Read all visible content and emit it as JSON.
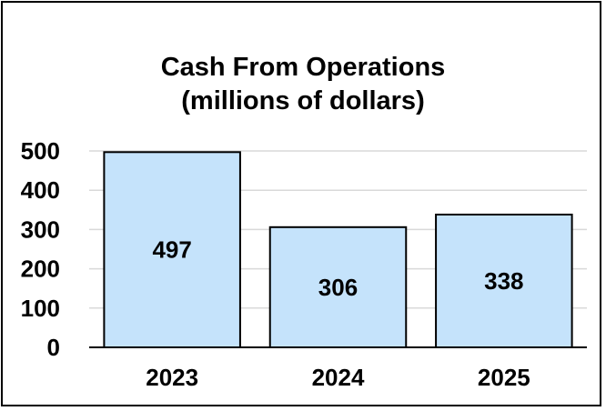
{
  "chart_data": {
    "type": "bar",
    "title_lines": [
      "Cash From Operations",
      "(millions of dollars)"
    ],
    "categories": [
      "2023",
      "2024",
      "2025"
    ],
    "values": [
      497,
      306,
      338
    ],
    "value_labels": [
      "497",
      "306",
      "338"
    ],
    "ylim": [
      0,
      500
    ],
    "yticks": [
      0,
      100,
      200,
      300,
      400,
      500
    ],
    "ytick_labels": [
      "0",
      "100",
      "200",
      "300",
      "400",
      "500"
    ],
    "grid": true,
    "xlabel": "",
    "ylabel": "",
    "colors": {
      "bar_fill": "#c5e3fb",
      "bar_stroke": "#000000",
      "grid": "#d9d9d9"
    }
  }
}
